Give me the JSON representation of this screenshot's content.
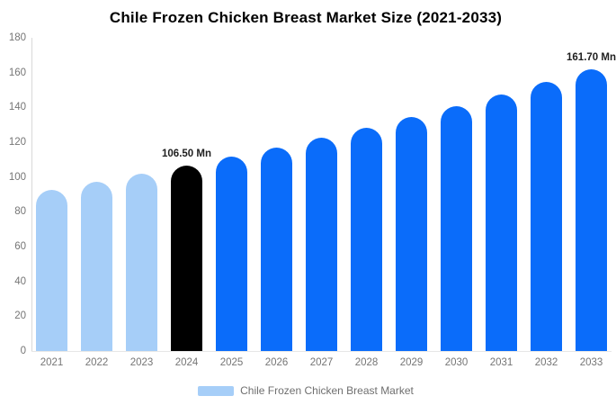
{
  "title": "Chile Frozen Chicken Breast Market Size (2021-2033)",
  "legend": {
    "label": "Chile Frozen Chicken Breast Market",
    "swatch_color": "#A6CEF8"
  },
  "colors": {
    "historical_bar": "#A6CEF8",
    "base_year_bar": "#000000",
    "forecast_bar": "#0A6CFA",
    "axis_text": "#757575",
    "axis_line": "#d9d9d9"
  },
  "chart_data": {
    "type": "bar",
    "title": "Chile Frozen Chicken Breast Market Size (2021-2033)",
    "categories": [
      "2021",
      "2022",
      "2023",
      "2024",
      "2025",
      "2026",
      "2027",
      "2028",
      "2029",
      "2030",
      "2031",
      "2032",
      "2033"
    ],
    "values": [
      92.7,
      97.1,
      101.7,
      106.5,
      111.6,
      116.9,
      122.4,
      128.2,
      134.3,
      140.7,
      147.4,
      154.4,
      161.7
    ],
    "bar_colors": [
      "#A6CEF8",
      "#A6CEF8",
      "#A6CEF8",
      "#000000",
      "#0A6CFA",
      "#0A6CFA",
      "#0A6CFA",
      "#0A6CFA",
      "#0A6CFA",
      "#0A6CFA",
      "#0A6CFA",
      "#0A6CFA",
      "#0A6CFA"
    ],
    "value_labels": [
      "",
      "",
      "",
      "106.50 Mn",
      "",
      "",
      "",
      "",
      "",
      "",
      "",
      "",
      "161.70 Mn"
    ],
    "xlabel": "",
    "ylabel": "",
    "ylim": [
      0,
      180
    ],
    "yticks": [
      0,
      20,
      40,
      60,
      80,
      100,
      120,
      140,
      160,
      180
    ],
    "grid": false,
    "legend_position": "bottom",
    "legend_entries": [
      "Chile Frozen Chicken Breast Market"
    ]
  }
}
